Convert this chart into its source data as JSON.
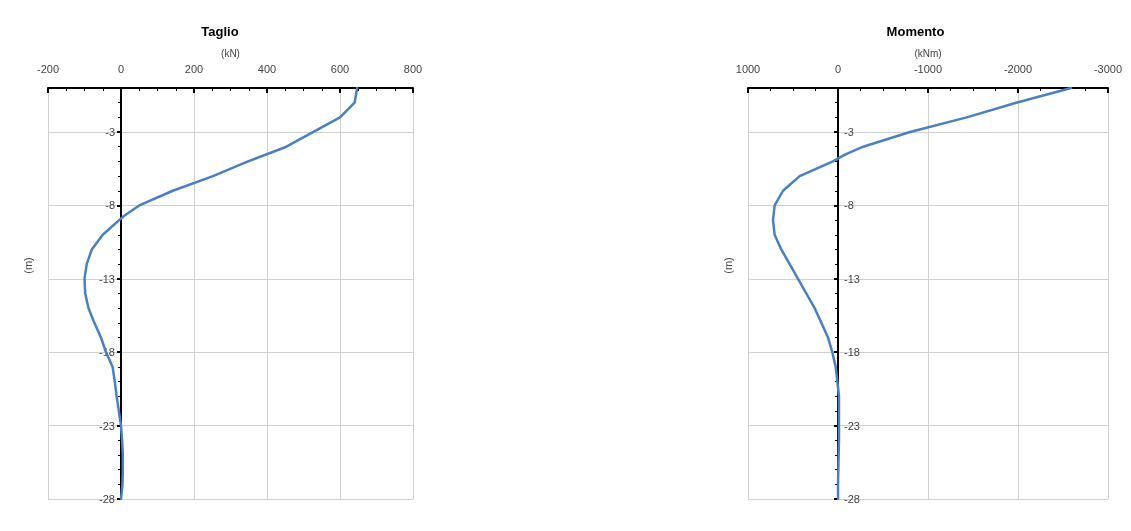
{
  "chart_data": [
    {
      "type": "line",
      "title": "Taglio",
      "xlabel": "(kN)",
      "ylabel": "(m)",
      "xlim": [
        -200,
        800
      ],
      "xticks": [
        -200,
        0,
        200,
        400,
        600,
        800
      ],
      "ylim": [
        -28,
        0
      ],
      "yticks": [
        -28,
        -23,
        -18,
        -13,
        -8,
        -3
      ],
      "grid": true,
      "series": [
        {
          "color": "#4a7fc1",
          "x": [
            647,
            640,
            600,
            526,
            453,
            348,
            252,
            142,
            50,
            9,
            -5,
            -50,
            -80,
            -94,
            -100,
            -98,
            -89,
            -73,
            -55,
            -41,
            -23,
            -20,
            -17,
            -12,
            -6,
            0,
            3,
            5,
            5,
            4,
            0
          ],
          "values": [
            0,
            -1,
            -2,
            -3,
            -4,
            -5,
            -6,
            -7,
            -8,
            -8.7,
            -9,
            -10,
            -11,
            -12,
            -13,
            -14,
            -15,
            -16,
            -17,
            -18,
            -19,
            -19.5,
            -20,
            -21,
            -22,
            -23,
            -24,
            -25,
            -26,
            -27,
            -28
          ]
        }
      ]
    },
    {
      "type": "line",
      "title": "Momento",
      "xlabel": "(kNm)",
      "ylabel": "(m)",
      "xlim": [
        1000,
        -3000
      ],
      "xticks": [
        1000,
        0,
        -1000,
        -2000,
        -3000
      ],
      "ylim": [
        -28,
        0
      ],
      "yticks": [
        -28,
        -23,
        -18,
        -13,
        -8,
        -3
      ],
      "grid": true,
      "series": [
        {
          "color": "#4a7fc1",
          "x": [
            -2590,
            -1980,
            -1430,
            -800,
            -280,
            -90,
            0,
            56,
            426,
            611,
            704,
            722,
            704,
            630,
            537,
            444,
            352,
            259,
            185,
            111,
            63,
            26,
            7,
            -11,
            -11,
            -11,
            -11,
            -7,
            -4,
            0,
            0
          ],
          "values": [
            0,
            -1,
            -2,
            -3,
            -4,
            -4.5,
            -4.8,
            -5,
            -6,
            -7,
            -8,
            -9,
            -10,
            -11,
            -12,
            -13,
            -14,
            -15,
            -16,
            -17,
            -18,
            -19,
            -20,
            -21,
            -22,
            -23,
            -24,
            -25,
            -26,
            -27,
            -28
          ]
        }
      ]
    }
  ]
}
